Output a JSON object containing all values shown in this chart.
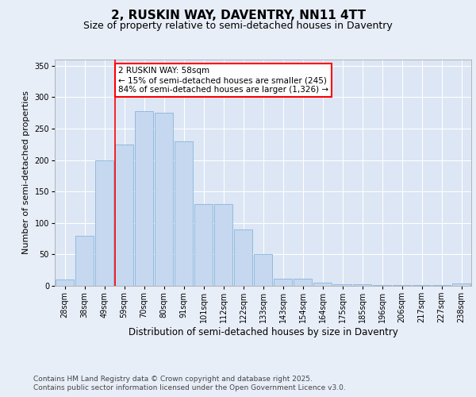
{
  "title1": "2, RUSKIN WAY, DAVENTRY, NN11 4TT",
  "title2": "Size of property relative to semi-detached houses in Daventry",
  "xlabel": "Distribution of semi-detached houses by size in Daventry",
  "ylabel": "Number of semi-detached properties",
  "categories": [
    "28sqm",
    "38sqm",
    "49sqm",
    "59sqm",
    "70sqm",
    "80sqm",
    "91sqm",
    "101sqm",
    "112sqm",
    "122sqm",
    "133sqm",
    "143sqm",
    "154sqm",
    "164sqm",
    "175sqm",
    "185sqm",
    "196sqm",
    "206sqm",
    "217sqm",
    "227sqm",
    "238sqm"
  ],
  "values": [
    10,
    80,
    200,
    225,
    278,
    275,
    230,
    130,
    130,
    90,
    50,
    12,
    12,
    5,
    3,
    2,
    1,
    1,
    1,
    1,
    4
  ],
  "bar_color": "#c5d8f0",
  "bar_edge_color": "#7aadd4",
  "red_line_index": 3,
  "annotation_text": "2 RUSKIN WAY: 58sqm\n← 15% of semi-detached houses are smaller (245)\n84% of semi-detached houses are larger (1,326) →",
  "ylim": [
    0,
    360
  ],
  "yticks": [
    0,
    50,
    100,
    150,
    200,
    250,
    300,
    350
  ],
  "bg_color": "#e8eef8",
  "plot_bg_color": "#dce6f5",
  "grid_color": "#ffffff",
  "footer1": "Contains HM Land Registry data © Crown copyright and database right 2025.",
  "footer2": "Contains public sector information licensed under the Open Government Licence v3.0.",
  "title1_fontsize": 11,
  "title2_fontsize": 9,
  "xlabel_fontsize": 8.5,
  "ylabel_fontsize": 8,
  "tick_fontsize": 7,
  "annot_fontsize": 7.5,
  "footer_fontsize": 6.5
}
